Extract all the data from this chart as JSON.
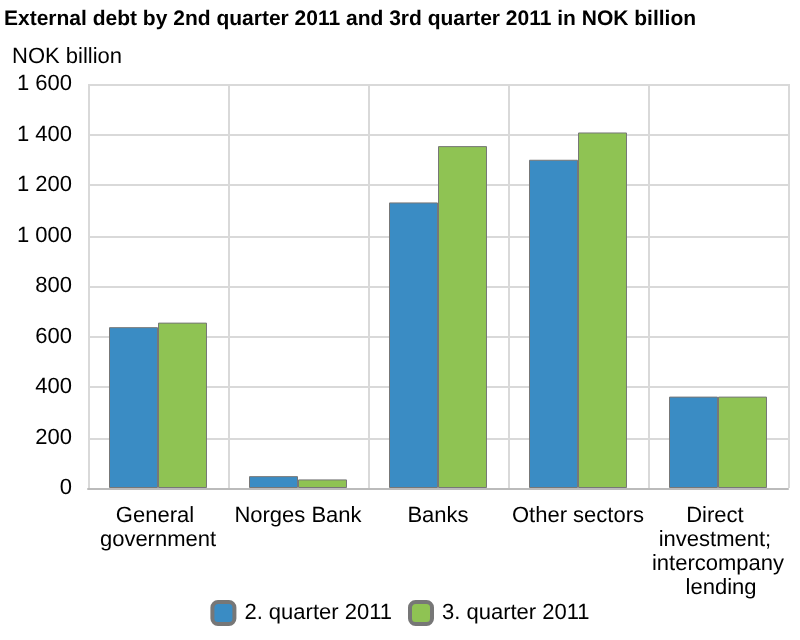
{
  "chart_data": {
    "type": "bar",
    "title": "External debt by 2nd quarter 2011 and 3rd quarter 2011 in NOK billion",
    "ylabel": "NOK billion",
    "categories": [
      "General government",
      "Norges Bank",
      "Banks",
      "Other sectors",
      "Direct investment; intercompany lending"
    ],
    "series": [
      {
        "name": "2. quarter 2011",
        "color": "#3a8cc4",
        "values": [
          637,
          47,
          1131,
          1300,
          362
        ]
      },
      {
        "name": "3. quarter 2011",
        "color": "#8fc353",
        "values": [
          655,
          34,
          1354,
          1408,
          362
        ]
      }
    ],
    "ylim": [
      0,
      1600
    ],
    "yticks": [
      0,
      200,
      400,
      600,
      800,
      {
        "value": 1000,
        "label": "1 000"
      },
      {
        "value": 1200,
        "label": "1 200"
      },
      {
        "value": 1400,
        "label": "1 400"
      },
      {
        "value": 1600,
        "label": "1 600"
      }
    ],
    "grid": true,
    "legend": "bottom"
  }
}
